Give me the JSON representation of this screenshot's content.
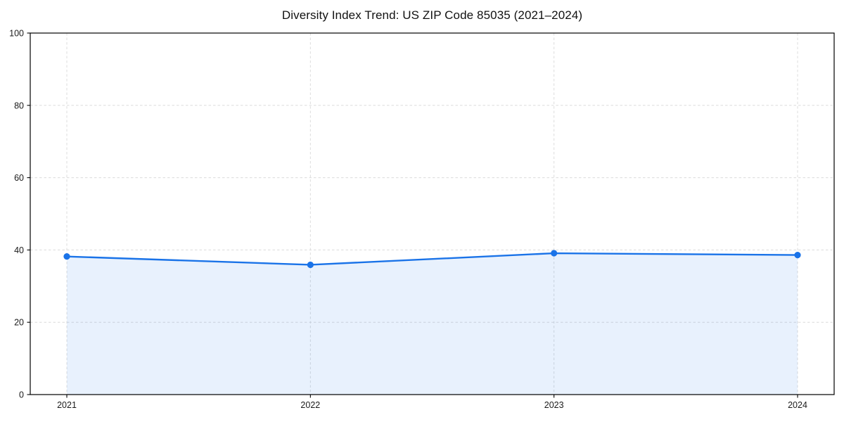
{
  "chart_data": {
    "type": "line",
    "title": "Diversity Index Trend: US ZIP Code 85035 (2021–2024)",
    "x": [
      "2021",
      "2022",
      "2023",
      "2024"
    ],
    "series": [
      {
        "name": "Diversity Index",
        "values": [
          38.2,
          35.9,
          39.1,
          38.6
        ]
      }
    ],
    "xlabel": "",
    "ylabel": "",
    "ylim": [
      0,
      100
    ],
    "yticks": [
      0,
      20,
      40,
      60,
      80,
      100
    ],
    "grid": true,
    "grid_style": "dashed",
    "legend_position": "none",
    "marker": "circle",
    "colors": {
      "line": "#1a73e8",
      "marker": "#1a73e8",
      "fill": "#1a73e8",
      "fill_opacity": 0.1,
      "grid": "#dcdcdc",
      "axis": "#000000",
      "title_text": "#111111",
      "tick_text": "#1a1a1a"
    }
  }
}
